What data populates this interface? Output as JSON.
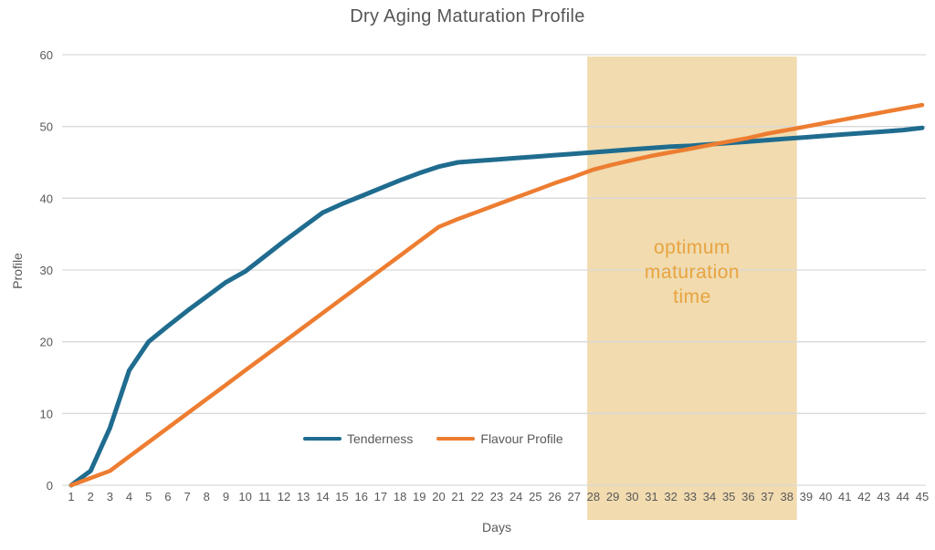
{
  "title": "Dry Aging Maturation Profile",
  "legend": {
    "items": [
      {
        "label": "Tenderness"
      },
      {
        "label": "Flavour Profile"
      }
    ]
  },
  "chart_data": {
    "type": "line",
    "title": "Dry Aging Maturation Profile",
    "xlabel": "Days",
    "ylabel": "Profile",
    "ylim": [
      0,
      60
    ],
    "yticks": [
      0,
      10,
      20,
      30,
      40,
      50,
      60
    ],
    "grid": "horizontal",
    "grid_color": "#D9D9D9",
    "legend_position": "bottom-center-inside-plot",
    "x": [
      1,
      2,
      3,
      4,
      5,
      6,
      7,
      8,
      9,
      10,
      11,
      12,
      13,
      14,
      15,
      16,
      17,
      18,
      19,
      20,
      21,
      22,
      23,
      24,
      25,
      26,
      27,
      28,
      29,
      30,
      31,
      32,
      33,
      34,
      35,
      36,
      37,
      38,
      39,
      40,
      41,
      42,
      43,
      44,
      45
    ],
    "series": [
      {
        "name": "Tenderness",
        "color": "#1F6C8F",
        "values": [
          0,
          2,
          8,
          16,
          20,
          22.2,
          24.3,
          26.3,
          28.3,
          29.8,
          31.9,
          34,
          36,
          38,
          39.2,
          40.3,
          41.4,
          42.5,
          43.5,
          44.4,
          45,
          45.2,
          45.4,
          45.6,
          45.8,
          46,
          46.2,
          46.4,
          46.6,
          46.8,
          47,
          47.2,
          47.3,
          47.5,
          47.7,
          47.9,
          48.1,
          48.3,
          48.5,
          48.7,
          48.9,
          49.1,
          49.3,
          49.5,
          49.8
        ]
      },
      {
        "name": "Flavour Profile",
        "color": "#ED7D31",
        "values": [
          0,
          1,
          2,
          4,
          6,
          8,
          10,
          12,
          14,
          16,
          18,
          20,
          22,
          24,
          26,
          28,
          30,
          32,
          34,
          36,
          37.1,
          38.1,
          39.1,
          40.1,
          41.1,
          42.1,
          43,
          44,
          44.7,
          45.3,
          45.9,
          46.4,
          46.9,
          47.4,
          47.9,
          48.4,
          49,
          49.5,
          50,
          50.5,
          51,
          51.5,
          52,
          52.5,
          53
        ]
      }
    ],
    "band": {
      "label": "optimum maturation time",
      "label_lines": [
        "optimum",
        "maturation",
        "time"
      ],
      "label_color": "#E8A43F",
      "fill": "#F1DBAF",
      "day_start": 27.68,
      "day_end": 38.52
    }
  }
}
